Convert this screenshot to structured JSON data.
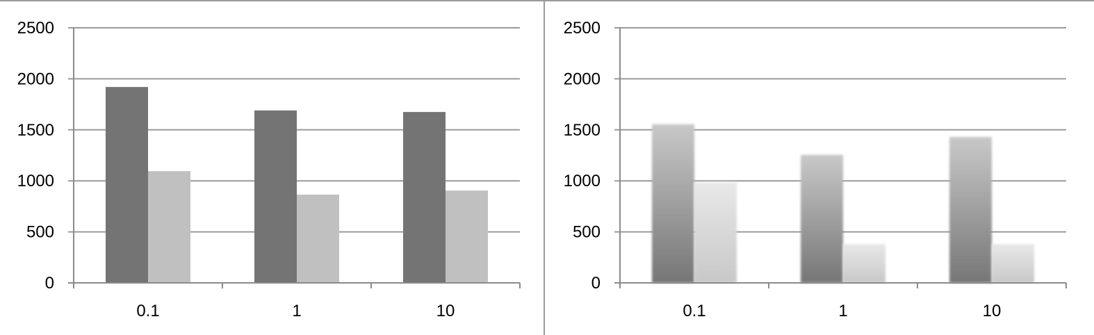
{
  "colors": {
    "gridline": "#9a9a9a",
    "axis": "#8a8a8a",
    "frame": "#9a9a9a"
  },
  "chart_data": [
    {
      "type": "bar",
      "categories": [
        "0.1",
        "1",
        "10"
      ],
      "ylim": [
        0,
        2500
      ],
      "yticks": [
        "0",
        "500",
        "1000",
        "1500",
        "2000",
        "2500"
      ],
      "grid": true,
      "title": "",
      "xlabel": "",
      "ylabel": "",
      "style": "flat",
      "series": [
        {
          "values": [
            1920,
            1690,
            1675
          ],
          "color": "#747474"
        },
        {
          "values": [
            1095,
            865,
            905
          ],
          "color": "#c0c0c0"
        }
      ]
    },
    {
      "type": "bar",
      "categories": [
        "0.1",
        "1",
        "10"
      ],
      "ylim": [
        0,
        2500
      ],
      "yticks": [
        "0",
        "500",
        "1000",
        "1500",
        "2000",
        "2500"
      ],
      "grid": true,
      "title": "",
      "xlabel": "",
      "ylabel": "",
      "style": "gradient",
      "series": [
        {
          "values": [
            1555,
            1255,
            1430
          ],
          "color": "#c8c8c8",
          "color_bottom": "#767676"
        },
        {
          "values": [
            985,
            380,
            380
          ],
          "color": "#e8e8e8",
          "color_bottom": "#c8c8c8"
        }
      ]
    }
  ]
}
